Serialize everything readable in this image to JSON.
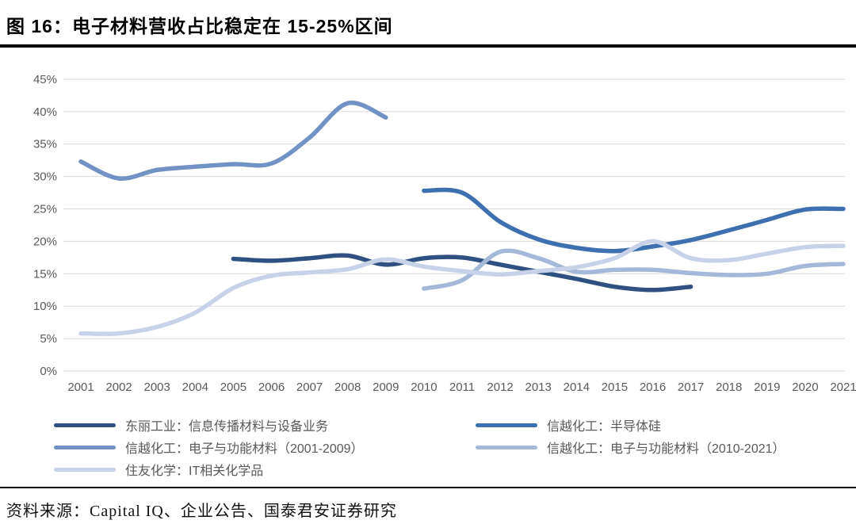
{
  "header": {
    "title": "图 16：电子材料营收占比稳定在 15-25%区间"
  },
  "chart_data": {
    "type": "line",
    "title": "图 16：电子材料营收占比稳定在 15-25%区间",
    "x": [
      2001,
      2002,
      2003,
      2004,
      2005,
      2006,
      2007,
      2008,
      2009,
      2010,
      2011,
      2012,
      2013,
      2014,
      2015,
      2016,
      2017,
      2018,
      2019,
      2020,
      2021
    ],
    "ylim": [
      0,
      45
    ],
    "y_tick_step": 5,
    "y_ticks": [
      "45%",
      "40%",
      "35%",
      "30%",
      "25%",
      "20%",
      "15%",
      "10%",
      "5%",
      "0%"
    ],
    "grid": "horizontal-only",
    "legend_position": "bottom-two-columns",
    "series": [
      {
        "name": "东丽工业：信息传播材料与设备业务",
        "color": "#2F5080",
        "start_year": 2005,
        "values": [
          17.3,
          17.0,
          17.4,
          17.8,
          16.4,
          17.4,
          17.5,
          16.4,
          15.3,
          14.2,
          13.0,
          12.5,
          13.0
        ]
      },
      {
        "name": "信越化工：半导体硅",
        "color": "#3E6FAE",
        "start_year": 2010,
        "values": [
          27.8,
          27.5,
          23.0,
          20.3,
          19.0,
          18.5,
          19.2,
          20.2,
          21.7,
          23.3,
          24.9,
          25.0
        ]
      },
      {
        "name": "信越化工：电子与功能材料（2001-2009）",
        "color": "#7291C4",
        "start_year": 2001,
        "values": [
          32.3,
          29.7,
          31.0,
          31.5,
          31.9,
          32.0,
          36.0,
          41.3,
          39.1
        ]
      },
      {
        "name": "信越化工：电子与功能材料（2010-2021）",
        "color": "#A5B8D9",
        "start_year": 2010,
        "values": [
          12.7,
          14.0,
          18.4,
          17.4,
          15.3,
          15.6,
          15.6,
          15.1,
          14.8,
          15.0,
          16.2,
          16.5
        ]
      },
      {
        "name": "住友化学：IT相关化学品",
        "color": "#C7D2E8",
        "start_year": 2001,
        "values": [
          5.8,
          5.8,
          6.8,
          9.0,
          12.8,
          14.7,
          15.2,
          15.7,
          17.2,
          16.1,
          15.4,
          14.9,
          15.4,
          16.0,
          17.4,
          20.0,
          17.4,
          17.1,
          18.1,
          19.1,
          19.3
        ]
      }
    ],
    "colors": {
      "gridline": "#D9D9D9",
      "axis_text": "#595959"
    }
  },
  "footer": {
    "source": "资料来源：Capital IQ、企业公告、国泰君安证券研究"
  }
}
